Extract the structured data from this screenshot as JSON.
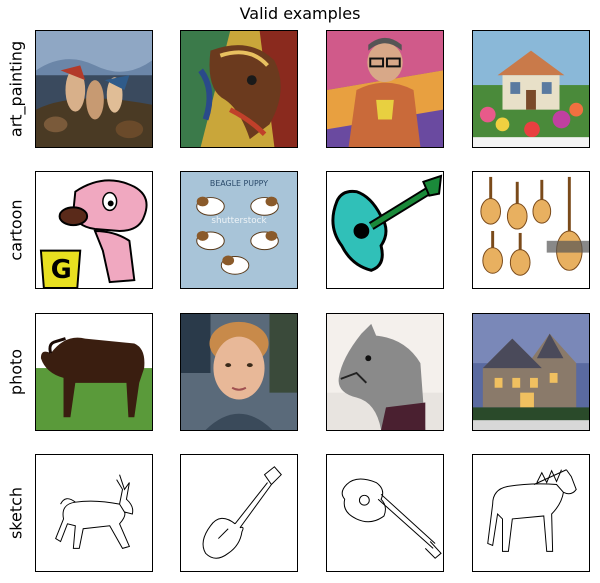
{
  "title": "Valid examples",
  "rows": [
    {
      "label": "art_painting",
      "images": [
        "mythological-painting",
        "horse-abstract-painting",
        "man-with-glasses-painting",
        "cottage-garden-painting"
      ]
    },
    {
      "label": "cartoon",
      "images": [
        "pink-dog-cartoon",
        "beagle-puppy-cartoon",
        "guitar-cartoon",
        "guitars-cartoon"
      ]
    },
    {
      "label": "photo",
      "images": [
        "horse-photo",
        "person-photo",
        "horse-head-photo",
        "house-photo"
      ]
    },
    {
      "label": "sketch",
      "images": [
        "horse-sketch",
        "guitar-sketch",
        "guitar-sketch-2",
        "horse-sketch-2"
      ]
    }
  ],
  "captions": {
    "beagle": "BEAGLE PUPPY",
    "watermark": "shutterstock"
  }
}
